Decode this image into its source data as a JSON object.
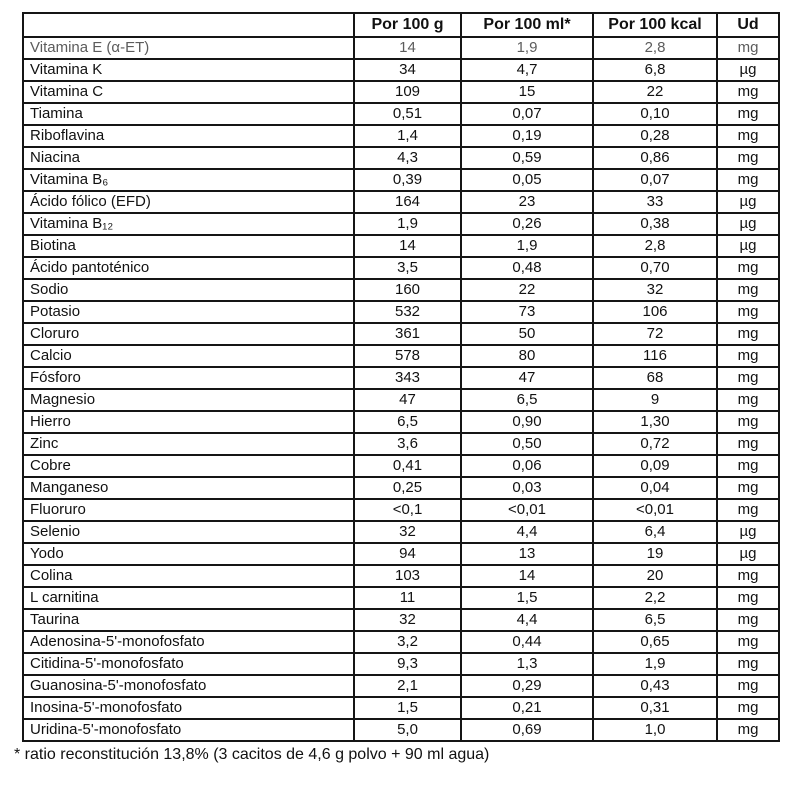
{
  "table": {
    "columns": {
      "label": "",
      "per_100g": "Por 100 g",
      "per_100ml": "Por 100 ml*",
      "per_100kcal": "Por 100 kcal",
      "unit": "Ud"
    },
    "rows": [
      {
        "label": "Vitamina E (α-ET)",
        "per_100g": "14",
        "per_100ml": "1,9",
        "per_100kcal": "2,8",
        "unit": "mg",
        "muted": true
      },
      {
        "label": "Vitamina K",
        "per_100g": "34",
        "per_100ml": "4,7",
        "per_100kcal": "6,8",
        "unit": "µg",
        "muted": false
      },
      {
        "label": "Vitamina C",
        "per_100g": "109",
        "per_100ml": "15",
        "per_100kcal": "22",
        "unit": "mg",
        "muted": false
      },
      {
        "label": "Tiamina",
        "per_100g": "0,51",
        "per_100ml": "0,07",
        "per_100kcal": "0,10",
        "unit": "mg",
        "muted": false
      },
      {
        "label": "Riboflavina",
        "per_100g": "1,4",
        "per_100ml": "0,19",
        "per_100kcal": "0,28",
        "unit": "mg",
        "muted": false
      },
      {
        "label": "Niacina",
        "per_100g": "4,3",
        "per_100ml": "0,59",
        "per_100kcal": "0,86",
        "unit": "mg",
        "muted": false
      },
      {
        "label": "Vitamina B₆",
        "per_100g": "0,39",
        "per_100ml": "0,05",
        "per_100kcal": "0,07",
        "unit": "mg",
        "muted": false
      },
      {
        "label": "Ácido fólico (EFD)",
        "per_100g": "164",
        "per_100ml": "23",
        "per_100kcal": "33",
        "unit": "µg",
        "muted": false
      },
      {
        "label": "Vitamina B₁₂",
        "per_100g": "1,9",
        "per_100ml": "0,26",
        "per_100kcal": "0,38",
        "unit": "µg",
        "muted": false
      },
      {
        "label": "Biotina",
        "per_100g": "14",
        "per_100ml": "1,9",
        "per_100kcal": "2,8",
        "unit": "µg",
        "muted": false
      },
      {
        "label": "Ácido pantoténico",
        "per_100g": "3,5",
        "per_100ml": "0,48",
        "per_100kcal": "0,70",
        "unit": "mg",
        "muted": false
      },
      {
        "label": "Sodio",
        "per_100g": "160",
        "per_100ml": "22",
        "per_100kcal": "32",
        "unit": "mg",
        "muted": false
      },
      {
        "label": "Potasio",
        "per_100g": "532",
        "per_100ml": "73",
        "per_100kcal": "106",
        "unit": "mg",
        "muted": false
      },
      {
        "label": "Cloruro",
        "per_100g": "361",
        "per_100ml": "50",
        "per_100kcal": "72",
        "unit": "mg",
        "muted": false
      },
      {
        "label": "Calcio",
        "per_100g": "578",
        "per_100ml": "80",
        "per_100kcal": "116",
        "unit": "mg",
        "muted": false
      },
      {
        "label": "Fósforo",
        "per_100g": "343",
        "per_100ml": "47",
        "per_100kcal": "68",
        "unit": "mg",
        "muted": false
      },
      {
        "label": "Magnesio",
        "per_100g": "47",
        "per_100ml": "6,5",
        "per_100kcal": "9",
        "unit": "mg",
        "muted": false
      },
      {
        "label": "Hierro",
        "per_100g": "6,5",
        "per_100ml": "0,90",
        "per_100kcal": "1,30",
        "unit": "mg",
        "muted": false
      },
      {
        "label": "Zinc",
        "per_100g": "3,6",
        "per_100ml": "0,50",
        "per_100kcal": "0,72",
        "unit": "mg",
        "muted": false
      },
      {
        "label": "Cobre",
        "per_100g": "0,41",
        "per_100ml": "0,06",
        "per_100kcal": "0,09",
        "unit": "mg",
        "muted": false
      },
      {
        "label": "Manganeso",
        "per_100g": "0,25",
        "per_100ml": "0,03",
        "per_100kcal": "0,04",
        "unit": "mg",
        "muted": false
      },
      {
        "label": "Fluoruro",
        "per_100g": "<0,1",
        "per_100ml": "<0,01",
        "per_100kcal": "<0,01",
        "unit": "mg",
        "muted": false
      },
      {
        "label": "Selenio",
        "per_100g": "32",
        "per_100ml": "4,4",
        "per_100kcal": "6,4",
        "unit": "µg",
        "muted": false
      },
      {
        "label": "Yodo",
        "per_100g": "94",
        "per_100ml": "13",
        "per_100kcal": "19",
        "unit": "µg",
        "muted": false
      },
      {
        "label": "Colina",
        "per_100g": "103",
        "per_100ml": "14",
        "per_100kcal": "20",
        "unit": "mg",
        "muted": false
      },
      {
        "label": "L carnitina",
        "per_100g": "11",
        "per_100ml": "1,5",
        "per_100kcal": "2,2",
        "unit": "mg",
        "muted": false
      },
      {
        "label": "Taurina",
        "per_100g": "32",
        "per_100ml": "4,4",
        "per_100kcal": "6,5",
        "unit": "mg",
        "muted": false
      },
      {
        "label": "Adenosina-5'-monofosfato",
        "per_100g": "3,2",
        "per_100ml": "0,44",
        "per_100kcal": "0,65",
        "unit": "mg",
        "muted": false
      },
      {
        "label": "Citidina-5'-monofosfato",
        "per_100g": "9,3",
        "per_100ml": "1,3",
        "per_100kcal": "1,9",
        "unit": "mg",
        "muted": false
      },
      {
        "label": "Guanosina-5'-monofosfato",
        "per_100g": "2,1",
        "per_100ml": "0,29",
        "per_100kcal": "0,43",
        "unit": "mg",
        "muted": false
      },
      {
        "label": "Inosina-5'-monofosfato",
        "per_100g": "1,5",
        "per_100ml": "0,21",
        "per_100kcal": "0,31",
        "unit": "mg",
        "muted": false
      },
      {
        "label": "Uridina-5'-monofosfato",
        "per_100g": "5,0",
        "per_100ml": "0,69",
        "per_100kcal": "1,0",
        "unit": "mg",
        "muted": false
      }
    ]
  },
  "footnote": "* ratio reconstitución 13,8% (3 cacitos de 4,6 g polvo + 90 ml agua)"
}
